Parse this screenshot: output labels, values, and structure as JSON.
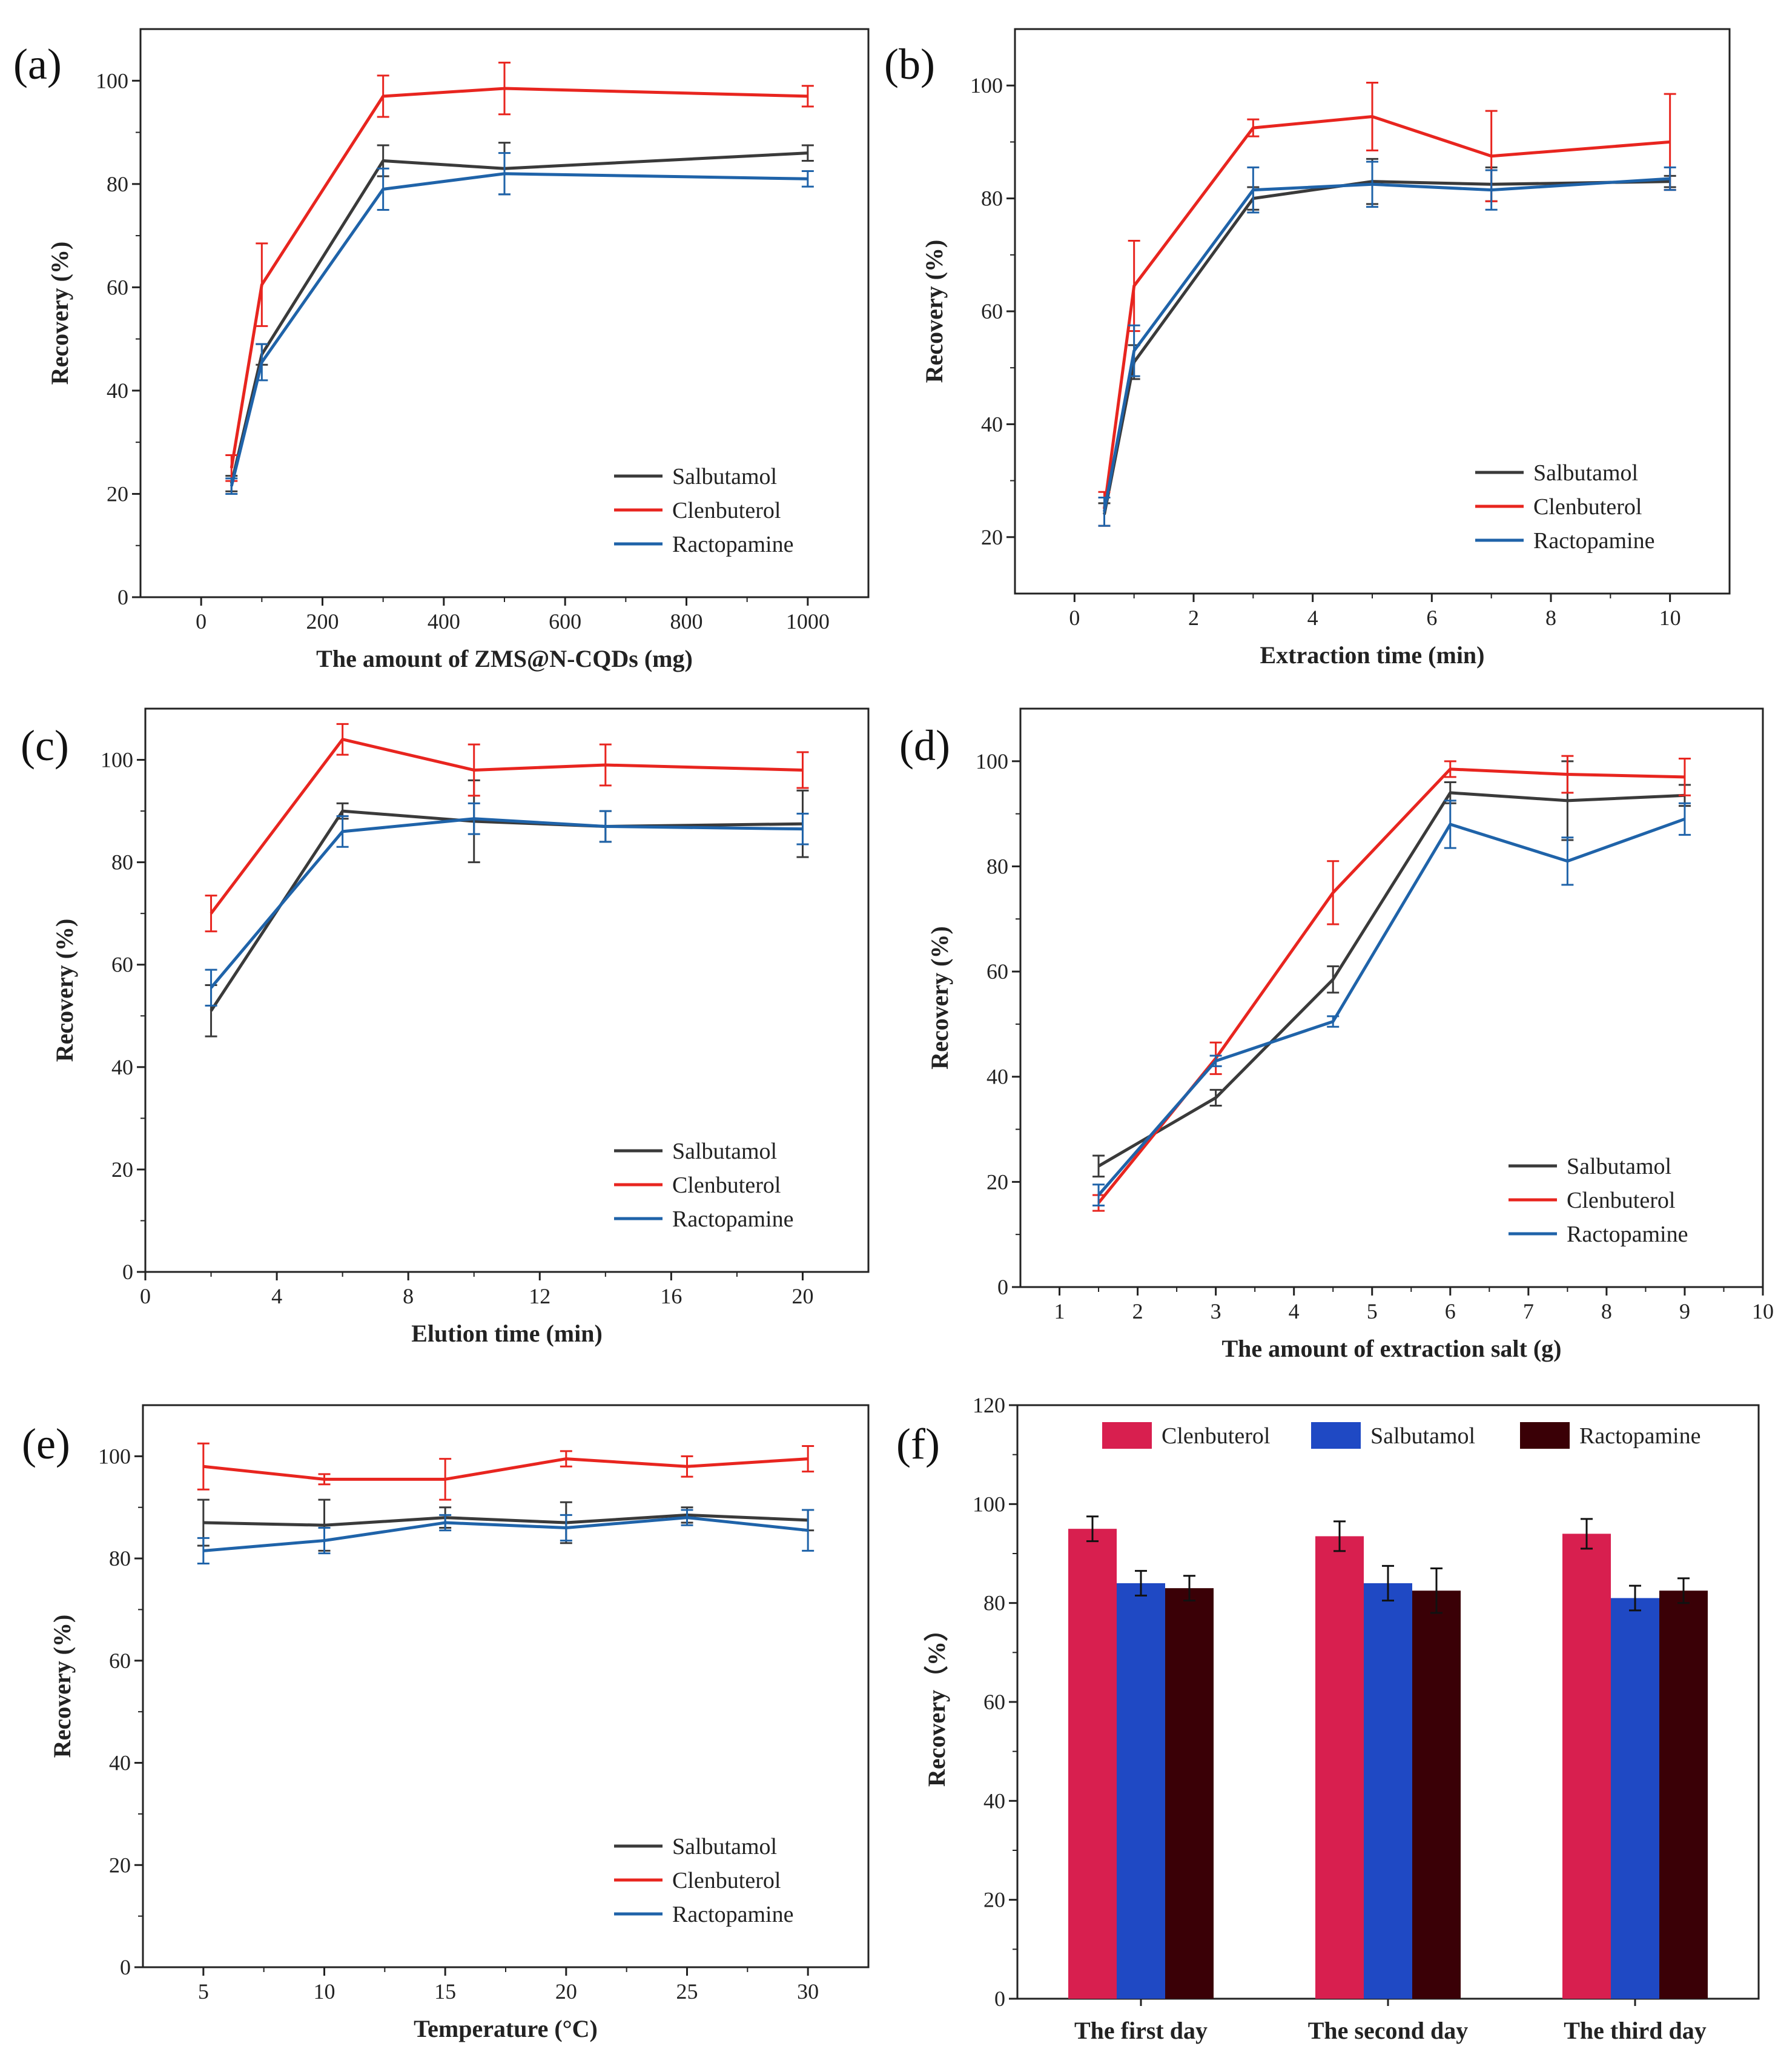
{
  "figure": {
    "description": "Six-panel recovery optimization figure"
  },
  "chart_data": [
    {
      "panel": "(a)",
      "type": "line",
      "xlabel": "The amount of ZMS@N-CQDs (mg)",
      "ylabel": "Recovery (%)",
      "xlim": [
        -100,
        1100
      ],
      "ylim": [
        0,
        110
      ],
      "xticks": [
        0,
        200,
        400,
        600,
        800,
        1000
      ],
      "yticks": [
        0,
        20,
        40,
        60,
        80,
        100
      ],
      "legend_position": "bottom-right",
      "x": [
        50,
        100,
        300,
        500,
        1000
      ],
      "series": [
        {
          "name": "Salbutamol",
          "color": "#3a3a3a",
          "values": [
            22,
            47,
            84.5,
            83,
            86
          ],
          "errors": [
            1.5,
            2,
            3,
            5,
            1.5
          ]
        },
        {
          "name": "Clenbuterol",
          "color": "#e8251f",
          "values": [
            25,
            60.5,
            97,
            98.5,
            97
          ],
          "errors": [
            2.5,
            8,
            4,
            5,
            2
          ]
        },
        {
          "name": "Ractopamine",
          "color": "#1f63a9",
          "values": [
            21.5,
            45.5,
            79,
            82,
            81
          ],
          "errors": [
            1.5,
            3.5,
            4,
            4,
            1.5
          ]
        }
      ]
    },
    {
      "panel": "(b)",
      "type": "line",
      "xlabel": "Extraction time (min)",
      "ylabel": "Recovery (%)",
      "xlim": [
        -1,
        11
      ],
      "ylim": [
        10,
        110
      ],
      "xticks": [
        0,
        2,
        4,
        6,
        8,
        10
      ],
      "yticks": [
        20,
        40,
        60,
        80,
        100
      ],
      "legend_position": "bottom-right",
      "x": [
        0.5,
        1,
        3,
        5,
        7,
        10
      ],
      "series": [
        {
          "name": "Salbutamol",
          "color": "#3a3a3a",
          "values": [
            24,
            51,
            80,
            83,
            82.5,
            83
          ],
          "errors": [
            2,
            3,
            2,
            4,
            3,
            1
          ]
        },
        {
          "name": "Clenbuterol",
          "color": "#e8251f",
          "values": [
            25,
            64.5,
            92.5,
            94.5,
            87.5,
            90
          ],
          "errors": [
            3,
            8,
            1.5,
            6,
            8,
            8.5
          ]
        },
        {
          "name": "Ractopamine",
          "color": "#1f63a9",
          "values": [
            24.5,
            53,
            81.5,
            82.5,
            81.5,
            83.5
          ],
          "errors": [
            2.5,
            4.5,
            4,
            4,
            3.5,
            2
          ]
        }
      ]
    },
    {
      "panel": "(c)",
      "type": "line",
      "xlabel": "Elution time (min)",
      "ylabel": "Recovery (%)",
      "xlim": [
        0,
        22
      ],
      "ylim": [
        0,
        110
      ],
      "xticks": [
        0,
        4,
        8,
        12,
        16,
        20
      ],
      "yticks": [
        0,
        20,
        40,
        60,
        80,
        100
      ],
      "legend_position": "bottom-right",
      "x": [
        2,
        6,
        10,
        14,
        20
      ],
      "series": [
        {
          "name": "Salbutamol",
          "color": "#3a3a3a",
          "values": [
            51,
            90,
            88,
            87,
            87.5
          ],
          "errors": [
            5,
            1.5,
            8,
            3,
            6.5
          ]
        },
        {
          "name": "Clenbuterol",
          "color": "#e8251f",
          "values": [
            70,
            104,
            98,
            99,
            98
          ],
          "errors": [
            3.5,
            3,
            5,
            4,
            3.5
          ]
        },
        {
          "name": "Ractopamine",
          "color": "#1f63a9",
          "values": [
            55.5,
            86,
            88.5,
            87,
            86.5
          ],
          "errors": [
            3.5,
            3,
            3,
            3,
            3
          ]
        }
      ]
    },
    {
      "panel": "(d)",
      "type": "line",
      "xlabel": "The amount of extraction salt (g)",
      "ylabel": "Recovery (%)",
      "xlim": [
        0.5,
        10
      ],
      "ylim": [
        0,
        110
      ],
      "xticks": [
        1,
        2,
        3,
        4,
        5,
        6,
        7,
        8,
        9,
        10
      ],
      "yticks": [
        0,
        20,
        40,
        60,
        80,
        100
      ],
      "legend_position": "bottom-right",
      "x": [
        1.5,
        3,
        4.5,
        6,
        7.5,
        9
      ],
      "series": [
        {
          "name": "Salbutamol",
          "color": "#3a3a3a",
          "values": [
            23,
            36,
            58.5,
            94,
            92.5,
            93.5
          ],
          "errors": [
            2,
            1.5,
            2.5,
            2,
            7.5,
            2
          ]
        },
        {
          "name": "Clenbuterol",
          "color": "#e8251f",
          "values": [
            16,
            43.5,
            75,
            98.5,
            97.5,
            97
          ],
          "errors": [
            1.5,
            3,
            6,
            1.5,
            3.5,
            3.5
          ]
        },
        {
          "name": "Ractopamine",
          "color": "#1f63a9",
          "values": [
            17.5,
            43,
            50.5,
            88,
            81,
            89
          ],
          "errors": [
            2,
            1,
            1,
            4.5,
            4.5,
            3
          ]
        }
      ]
    },
    {
      "panel": "(e)",
      "type": "line",
      "xlabel": "Temperature (°C)",
      "ylabel": "Recovery (%)",
      "xlim": [
        2.5,
        32.5
      ],
      "ylim": [
        0,
        110
      ],
      "xticks": [
        5,
        10,
        15,
        20,
        25,
        30
      ],
      "yticks": [
        0,
        20,
        40,
        60,
        80,
        100
      ],
      "legend_position": "bottom-right",
      "x": [
        5,
        10,
        15,
        20,
        25,
        30
      ],
      "series": [
        {
          "name": "Salbutamol",
          "color": "#3a3a3a",
          "values": [
            87,
            86.5,
            88,
            87,
            88.5,
            87.5
          ],
          "errors": [
            4.5,
            5,
            2,
            4,
            1.5,
            2
          ]
        },
        {
          "name": "Clenbuterol",
          "color": "#e8251f",
          "values": [
            98,
            95.5,
            95.5,
            99.5,
            98,
            99.5
          ],
          "errors": [
            4.5,
            1,
            4,
            1.5,
            2,
            2.5
          ]
        },
        {
          "name": "Ractopamine",
          "color": "#1f63a9",
          "values": [
            81.5,
            83.5,
            87,
            86,
            88,
            85.5
          ],
          "errors": [
            2.5,
            2.5,
            1.5,
            2.5,
            1.5,
            4
          ]
        }
      ]
    },
    {
      "panel": "(f)",
      "type": "bar",
      "xlabel": "",
      "ylabel": "Recovery（%）",
      "ylim": [
        0,
        120
      ],
      "yticks": [
        0,
        20,
        40,
        60,
        80,
        100,
        120
      ],
      "legend_position": "top",
      "categories": [
        "The first day",
        "The second day",
        "The third day"
      ],
      "series": [
        {
          "name": "Clenbuterol",
          "color": "#d81f4f",
          "values": [
            95,
            93.5,
            94
          ],
          "errors": [
            2.5,
            3,
            3
          ]
        },
        {
          "name": "Salbutamol",
          "color": "#1f49c4",
          "values": [
            84,
            84,
            81
          ],
          "errors": [
            2.5,
            3.5,
            2.5
          ]
        },
        {
          "name": "Ractopamine",
          "color": "#3a0006",
          "values": [
            83,
            82.5,
            82.5
          ],
          "errors": [
            2.5,
            4.5,
            2.5
          ]
        }
      ]
    }
  ]
}
